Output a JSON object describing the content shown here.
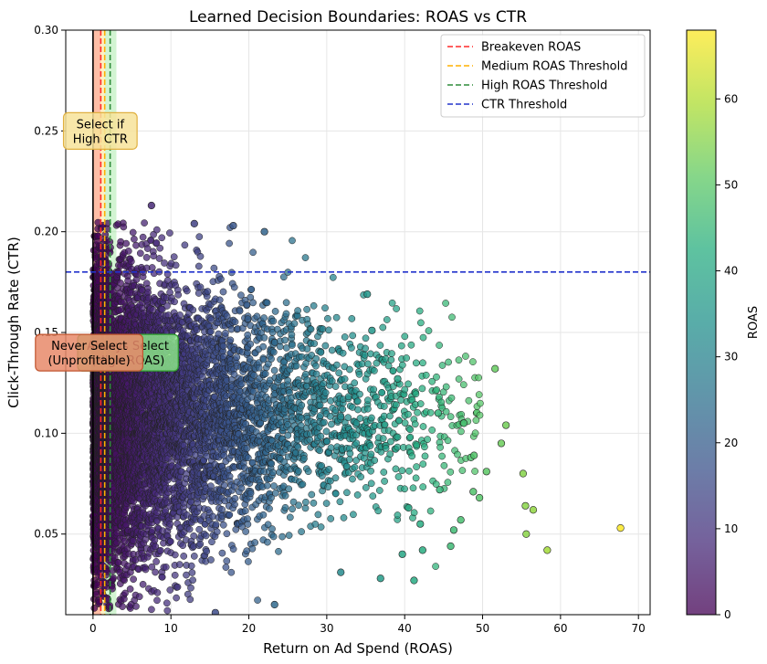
{
  "chart_data": {
    "type": "scatter",
    "title": "Learned Decision Boundaries: ROAS vs CTR",
    "xlabel": "Return on Ad Spend (ROAS)",
    "ylabel": "Click-Through Rate (CTR)",
    "xlim": [
      -3.5,
      71.5
    ],
    "ylim": [
      0.01,
      0.3
    ],
    "xticks": [
      "0",
      "10",
      "20",
      "30",
      "40",
      "50",
      "60",
      "70"
    ],
    "yticks": [
      "0.05",
      "0.10",
      "0.15",
      "0.20",
      "0.25",
      "0.30"
    ],
    "grid": true,
    "colorbar": {
      "label": "ROAS",
      "range": [
        0,
        68
      ],
      "ticks": [
        "0",
        "10",
        "20",
        "30",
        "40",
        "50",
        "60"
      ],
      "colormap": "viridis"
    },
    "legend": {
      "placement": "top-right",
      "entries": [
        {
          "label": "Breakeven ROAS",
          "color": "#ff2a2a"
        },
        {
          "label": "Medium ROAS Threshold",
          "color": "#ffb000"
        },
        {
          "label": "High ROAS Threshold",
          "color": "#2e8b3a"
        },
        {
          "label": "CTR Threshold",
          "color": "#2233cc"
        }
      ]
    },
    "thresholds": {
      "breakeven_roas": 1.0,
      "medium_roas": 1.5,
      "high_roas": 2.2,
      "ctr": 0.18
    },
    "regions": [
      {
        "label": "Never Select (Unprofitable)",
        "x_range": [
          0,
          1.0
        ],
        "color": "#ff4500"
      },
      {
        "label": "Select if High CTR",
        "x_range": [
          1.0,
          1.5
        ],
        "color": "#ffd54f"
      },
      {
        "label": "Always Select (High ROAS)",
        "x_range": [
          1.5,
          3.0
        ],
        "color": "#7ee07e"
      }
    ],
    "annotations": [
      {
        "text": "Select if\nHigh CTR",
        "x": 0.7,
        "y": 0.25,
        "color": "#f7e39a"
      },
      {
        "text": "Never Select\n(Unprofitable)",
        "x": -0.5,
        "y": 0.14,
        "color": "#e88a6a"
      },
      {
        "text": "Always Select\n(High ROAS)",
        "x": 0.5,
        "y": 0.14,
        "color": "#8ae28a"
      }
    ],
    "highlight_points": [
      {
        "x": 67.7,
        "y": 0.053
      },
      {
        "x": 58.3,
        "y": 0.042
      },
      {
        "x": 56.5,
        "y": 0.062
      },
      {
        "x": 55.5,
        "y": 0.064
      },
      {
        "x": 55.6,
        "y": 0.05
      },
      {
        "x": 55.2,
        "y": 0.08
      },
      {
        "x": 53.0,
        "y": 0.104
      },
      {
        "x": 52.4,
        "y": 0.095
      },
      {
        "x": 51.6,
        "y": 0.132
      },
      {
        "x": 50.5,
        "y": 0.081
      },
      {
        "x": 49.6,
        "y": 0.068
      },
      {
        "x": 48.5,
        "y": 0.088
      },
      {
        "x": 48.9,
        "y": 0.089
      },
      {
        "x": 48.8,
        "y": 0.071
      },
      {
        "x": 47.6,
        "y": 0.105
      },
      {
        "x": 47.2,
        "y": 0.057
      },
      {
        "x": 46.3,
        "y": 0.052
      },
      {
        "x": 45.9,
        "y": 0.044
      },
      {
        "x": 44.5,
        "y": 0.072
      },
      {
        "x": 44.3,
        "y": 0.11
      },
      {
        "x": 42.3,
        "y": 0.042
      },
      {
        "x": 42.0,
        "y": 0.055
      },
      {
        "x": 41.2,
        "y": 0.027
      },
      {
        "x": 40.5,
        "y": 0.063
      },
      {
        "x": 39.7,
        "y": 0.04
      },
      {
        "x": 39.1,
        "y": 0.127
      },
      {
        "x": 36.9,
        "y": 0.028
      },
      {
        "x": 35.8,
        "y": 0.151
      },
      {
        "x": 35.2,
        "y": 0.169
      },
      {
        "x": 31.8,
        "y": 0.031
      },
      {
        "x": 23.3,
        "y": 0.015
      },
      {
        "x": 22.0,
        "y": 0.2
      },
      {
        "x": 18.0,
        "y": 0.203
      },
      {
        "x": 15.7,
        "y": 0.011
      },
      {
        "x": 13.0,
        "y": 0.204
      },
      {
        "x": 7.5,
        "y": 0.213
      }
    ]
  }
}
